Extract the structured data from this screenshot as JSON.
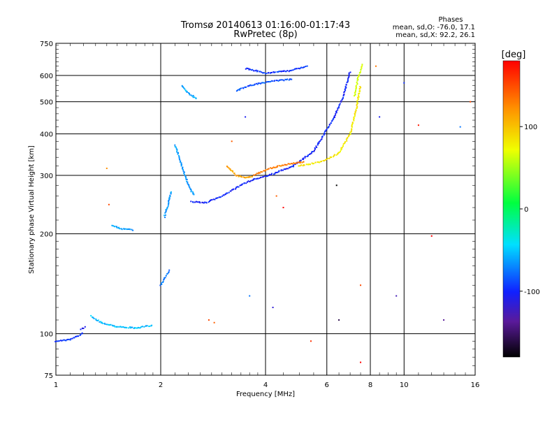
{
  "chart_data": {
    "type": "scatter",
    "title": "Tromsø 20140613 01:16:00-01:17:43",
    "subtitle": "RwPretec (8p)",
    "xlabel": "Frequency [MHz]",
    "ylabel": "Stationary phase Virtual Height [km]",
    "x_scale": "log",
    "y_scale": "log",
    "xlim": [
      1,
      16
    ],
    "ylim": [
      75,
      750
    ],
    "x_ticks": [
      1,
      2,
      4,
      6,
      8,
      10,
      16
    ],
    "y_ticks": [
      75,
      100,
      200,
      300,
      400,
      500,
      600,
      750
    ],
    "grid": true,
    "stats": {
      "heading": "Phases",
      "line_o": "mean, sd,O: -76.0, 17.1",
      "line_x": "mean, sd,X:  92.2, 26.1"
    },
    "colorbar": {
      "label": "[deg]",
      "range": [
        -180,
        180
      ],
      "ticks": [
        100,
        0,
        -100
      ]
    },
    "traces": [
      {
        "x": [
          1.0,
          1.1,
          1.17,
          1.2
        ],
        "y": [
          95,
          96,
          99,
          101
        ],
        "phase": -100
      },
      {
        "x": [
          1.18,
          1.22
        ],
        "y": [
          103,
          105
        ],
        "phase": -110
      },
      {
        "x": [
          1.26,
          1.35,
          1.5,
          1.7,
          1.9
        ],
        "y": [
          113,
          108,
          105,
          104,
          106
        ],
        "phase": -60
      },
      {
        "x": [
          1.45,
          1.55,
          1.67
        ],
        "y": [
          212,
          207,
          205
        ],
        "phase": -70
      },
      {
        "x": [
          2.0,
          2.06,
          2.12
        ],
        "y": [
          140,
          148,
          156
        ],
        "phase": -80
      },
      {
        "x": [
          2.05,
          2.1,
          2.15
        ],
        "y": [
          225,
          245,
          270
        ],
        "phase": -70
      },
      {
        "x": [
          2.2,
          2.3,
          2.4,
          2.5
        ],
        "y": [
          370,
          320,
          280,
          260
        ],
        "phase": -70
      },
      {
        "x": [
          2.3,
          2.4,
          2.55
        ],
        "y": [
          560,
          530,
          510
        ],
        "phase": -65
      },
      {
        "x": [
          2.45,
          2.7,
          3.0,
          3.4,
          3.7,
          4.1,
          4.8,
          5.5,
          5.9
        ],
        "y": [
          250,
          248,
          260,
          280,
          292,
          300,
          320,
          355,
          400
        ],
        "phase": -105
      },
      {
        "x": [
          3.1,
          3.3,
          3.5,
          3.7
        ],
        "y": [
          320,
          300,
          295,
          298
        ],
        "phase": 110
      },
      {
        "x": [
          3.7,
          4.1,
          4.7,
          5.2
        ],
        "y": [
          300,
          315,
          325,
          330
        ],
        "phase": 130
      },
      {
        "x": [
          5.0,
          5.8,
          6.5,
          7.0,
          7.3,
          7.5
        ],
        "y": [
          320,
          330,
          350,
          400,
          480,
          560
        ],
        "phase": 80
      },
      {
        "x": [
          7.2,
          7.4,
          7.6
        ],
        "y": [
          520,
          600,
          650
        ],
        "phase": 60
      },
      {
        "x": [
          5.9,
          6.3,
          6.7,
          7.0
        ],
        "y": [
          400,
          450,
          520,
          620
        ],
        "phase": -105
      },
      {
        "x": [
          3.3,
          3.6,
          4.1,
          4.8
        ],
        "y": [
          540,
          560,
          575,
          585
        ],
        "phase": -90
      },
      {
        "x": [
          3.5,
          4.0,
          4.7,
          5.3
        ],
        "y": [
          630,
          610,
          620,
          640
        ],
        "phase": -100
      }
    ],
    "points": [
      {
        "x": 1.42,
        "y": 245,
        "phase": 150
      },
      {
        "x": 1.4,
        "y": 315,
        "phase": 120
      },
      {
        "x": 2.75,
        "y": 110,
        "phase": 150
      },
      {
        "x": 2.85,
        "y": 108,
        "phase": 140
      },
      {
        "x": 3.2,
        "y": 380,
        "phase": 140
      },
      {
        "x": 3.5,
        "y": 450,
        "phase": -110
      },
      {
        "x": 4.3,
        "y": 260,
        "phase": 140
      },
      {
        "x": 4.5,
        "y": 240,
        "phase": 180
      },
      {
        "x": 6.4,
        "y": 280,
        "phase": -180
      },
      {
        "x": 7.5,
        "y": 82,
        "phase": 180
      },
      {
        "x": 8.3,
        "y": 640,
        "phase": 130
      },
      {
        "x": 10.0,
        "y": 570,
        "phase": -100
      },
      {
        "x": 11.0,
        "y": 425,
        "phase": 170
      },
      {
        "x": 12.0,
        "y": 197,
        "phase": 180
      },
      {
        "x": 14.5,
        "y": 420,
        "phase": -80
      },
      {
        "x": 15.5,
        "y": 500,
        "phase": 150
      },
      {
        "x": 8.5,
        "y": 450,
        "phase": -110
      },
      {
        "x": 7.5,
        "y": 140,
        "phase": 150
      },
      {
        "x": 4.2,
        "y": 120,
        "phase": -120
      },
      {
        "x": 3.6,
        "y": 130,
        "phase": -80
      },
      {
        "x": 5.4,
        "y": 95,
        "phase": 160
      },
      {
        "x": 6.5,
        "y": 110,
        "phase": -160
      },
      {
        "x": 9.5,
        "y": 130,
        "phase": -130
      },
      {
        "x": 13.0,
        "y": 110,
        "phase": -140
      }
    ]
  }
}
